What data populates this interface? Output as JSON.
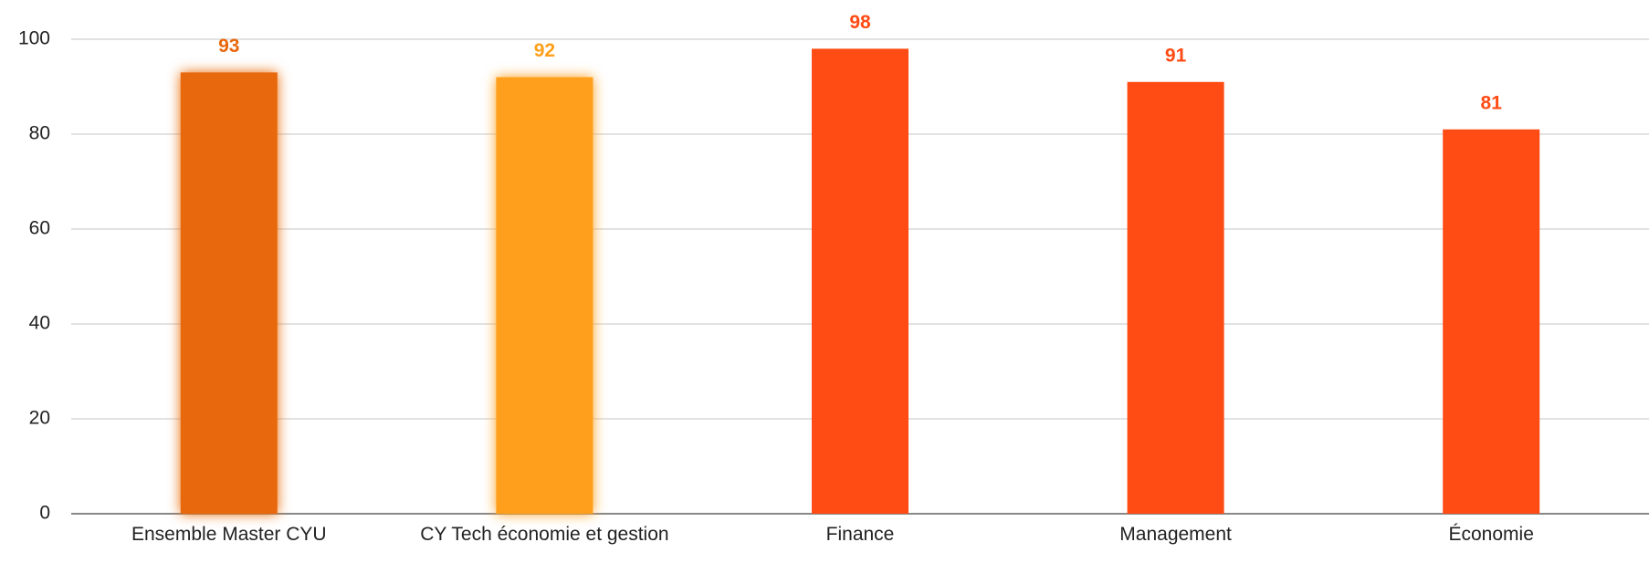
{
  "chart_data": {
    "type": "bar",
    "categories": [
      "Ensemble Master CYU",
      "CY Tech économie et gestion",
      "Finance",
      "Management",
      "Économie"
    ],
    "values": [
      93,
      92,
      98,
      91,
      81
    ],
    "colors": [
      "#e8670c",
      "#ff9f1a",
      "#ff4b14",
      "#ff4b14",
      "#ff4b14"
    ],
    "glow": [
      true,
      true,
      false,
      false,
      false
    ],
    "ylim": [
      0,
      100
    ],
    "yticks": [
      0,
      20,
      40,
      60,
      80,
      100
    ],
    "grid": true
  }
}
